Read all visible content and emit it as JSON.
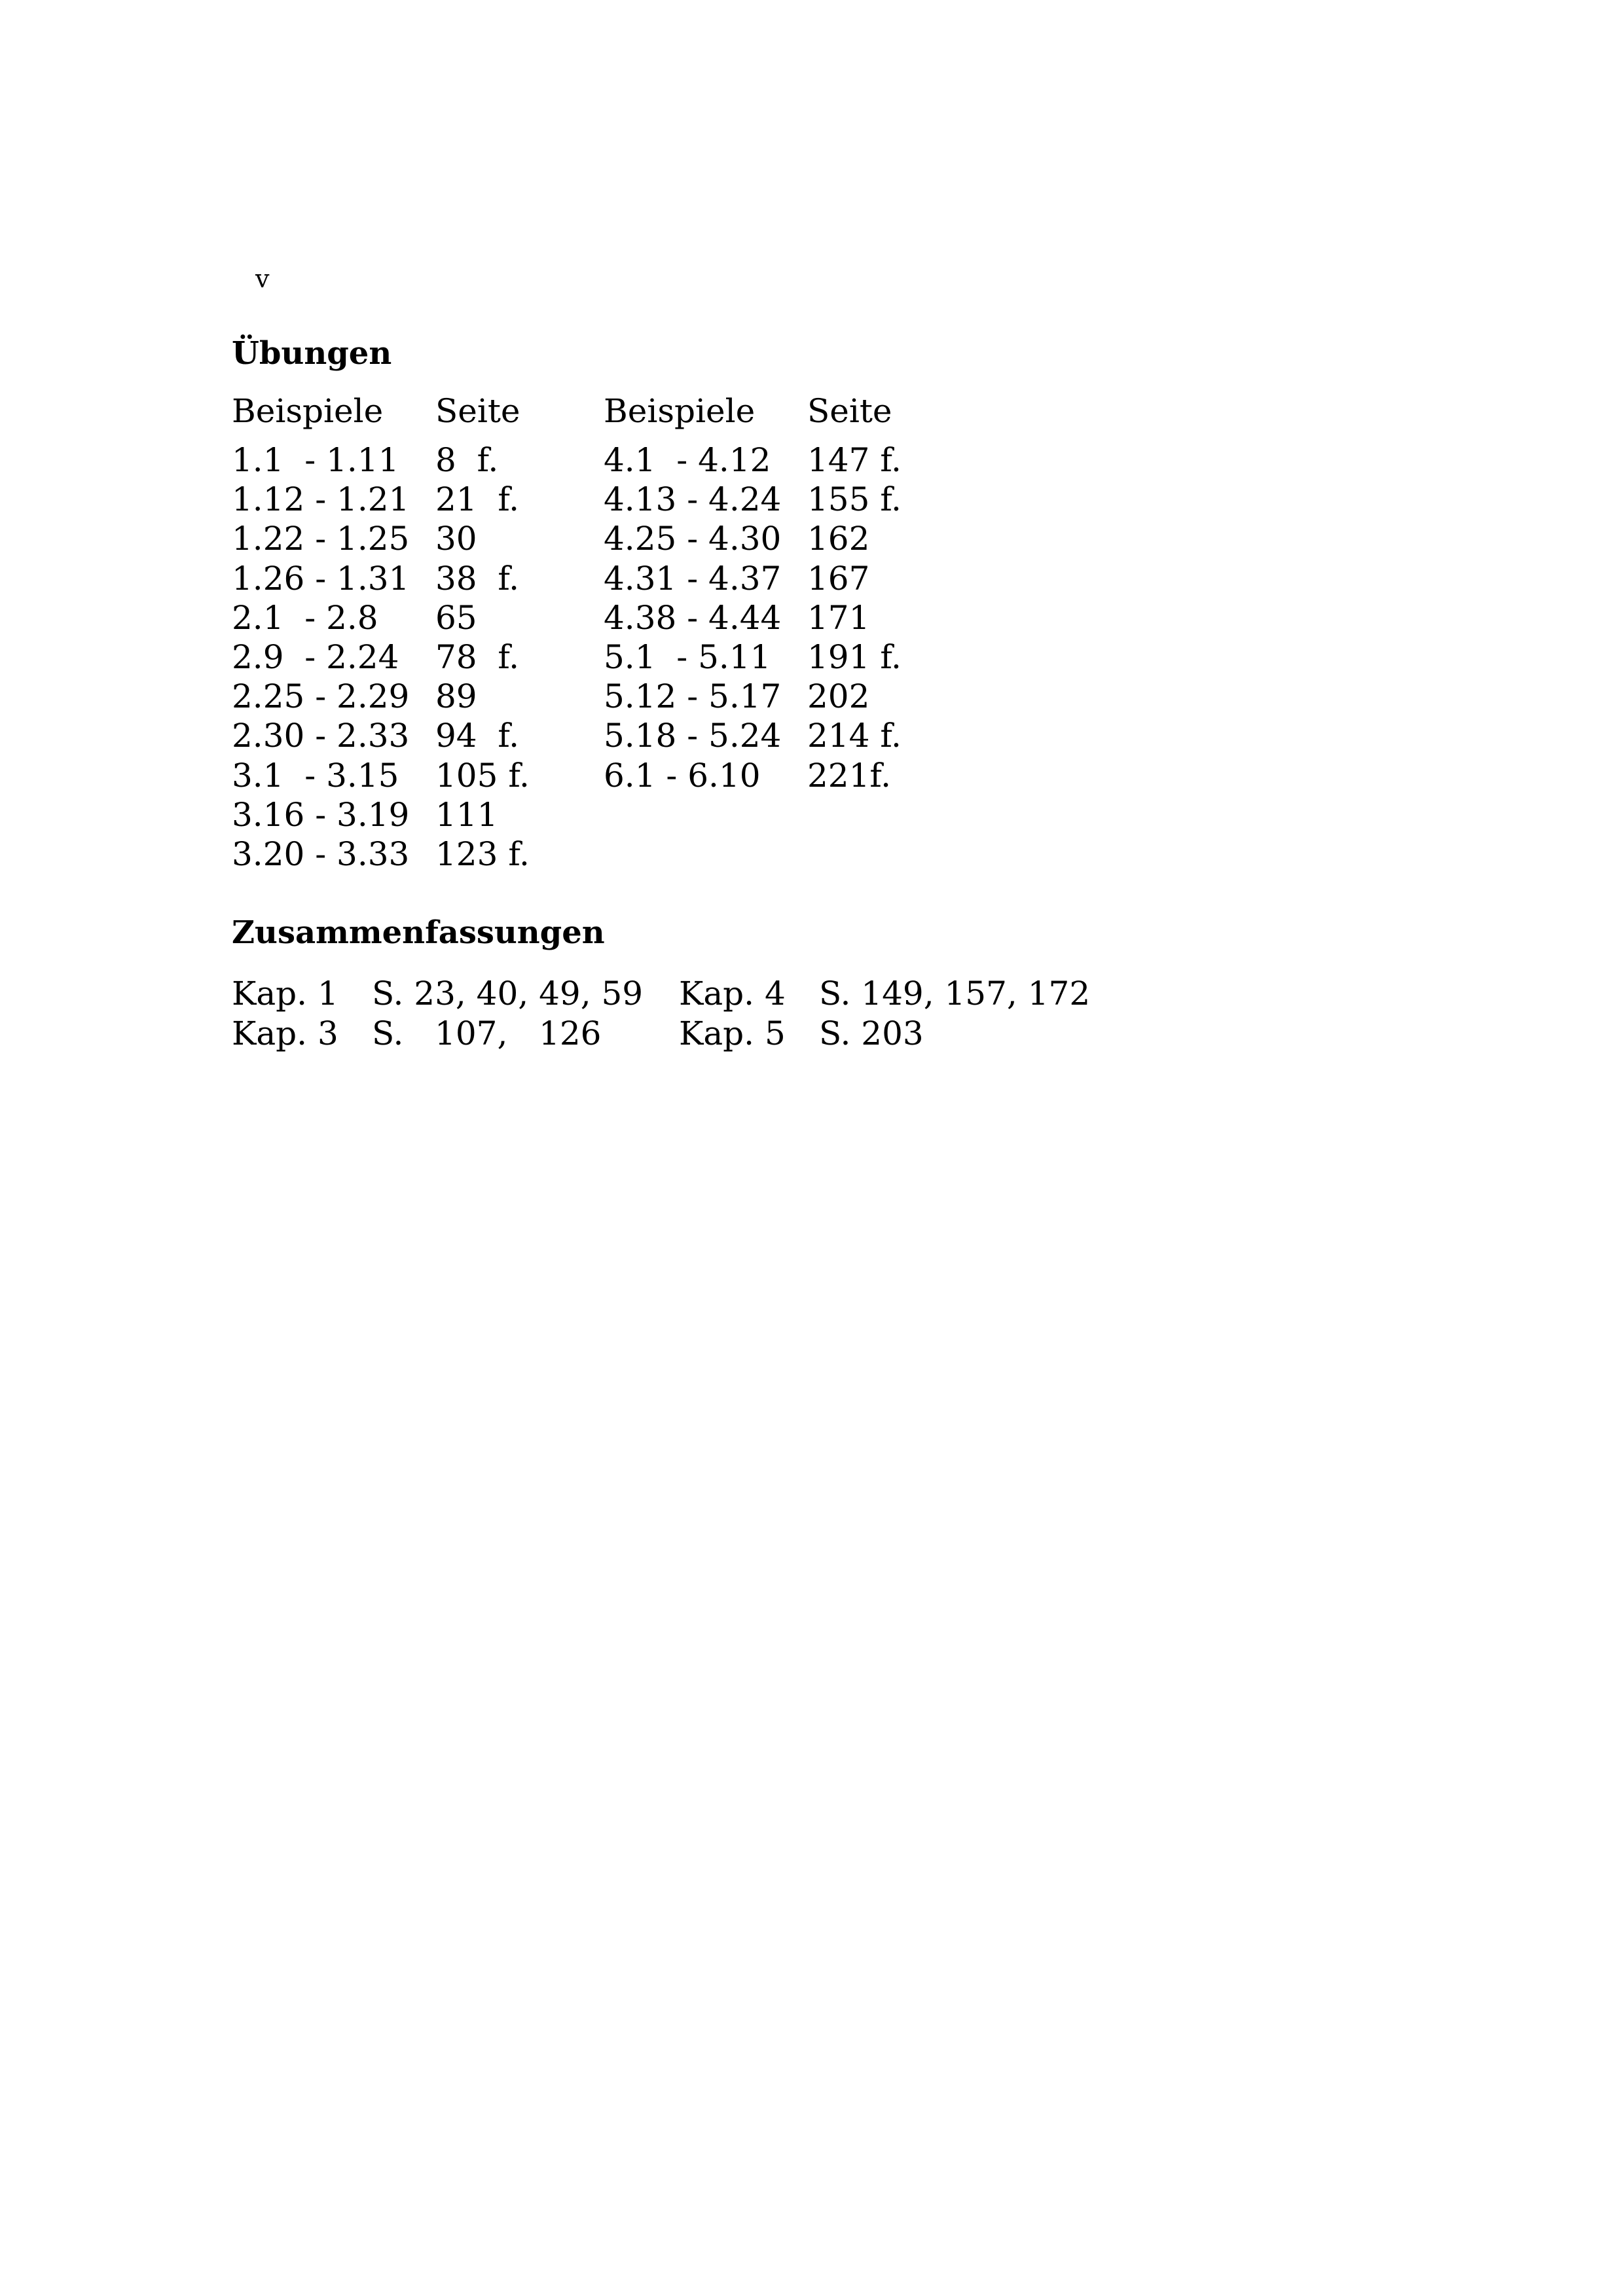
{
  "page_number": "v",
  "uebungen": {
    "title": "Übungen",
    "headers": [
      "Beispiele",
      "Seite",
      "Beispiele",
      "Seite"
    ],
    "left": [
      {
        "range": "1.1  - 1.11",
        "page": "8  f."
      },
      {
        "range": "1.12 - 1.21",
        "page": "21  f."
      },
      {
        "range": "1.22 - 1.25",
        "page": "30"
      },
      {
        "range": "1.26 - 1.31",
        "page": "38  f."
      },
      {
        "range": "2.1  - 2.8",
        "page": "65"
      },
      {
        "range": "2.9  - 2.24",
        "page": "78  f."
      },
      {
        "range": "2.25 - 2.29",
        "page": "89"
      },
      {
        "range": "2.30 - 2.33",
        "page": "94  f."
      },
      {
        "range": "3.1  - 3.15",
        "page": "105 f."
      },
      {
        "range": "3.16 - 3.19",
        "page": "111"
      },
      {
        "range": "3.20 - 3.33",
        "page": "123 f."
      }
    ],
    "right": [
      {
        "range": "4.1  - 4.12",
        "page": "147 f."
      },
      {
        "range": "4.13 - 4.24",
        "page": "155 f."
      },
      {
        "range": "4.25 - 4.30",
        "page": "162"
      },
      {
        "range": "4.31 - 4.37",
        "page": "167"
      },
      {
        "range": "4.38 - 4.44",
        "page": "171"
      },
      {
        "range": "5.1  - 5.11",
        "page": "191 f."
      },
      {
        "range": "5.12 - 5.17",
        "page": "202"
      },
      {
        "range": "5.18 - 5.24",
        "page": "214 f."
      },
      {
        "range": "6.1 - 6.10",
        "page": "221f."
      }
    ]
  },
  "zusammenfassungen": {
    "title": "Zusammenfassungen",
    "rows": [
      [
        {
          "kap": "Kap. 1",
          "pages": "S. 23, 40, 49, 59"
        },
        {
          "kap": "Kap. 4",
          "pages": "S. 149, 157, 172"
        }
      ],
      [
        {
          "kap": "Kap. 3",
          "pages": "S.   107,   126"
        },
        {
          "kap": "Kap. 5",
          "pages": "S. 203"
        }
      ]
    ]
  }
}
